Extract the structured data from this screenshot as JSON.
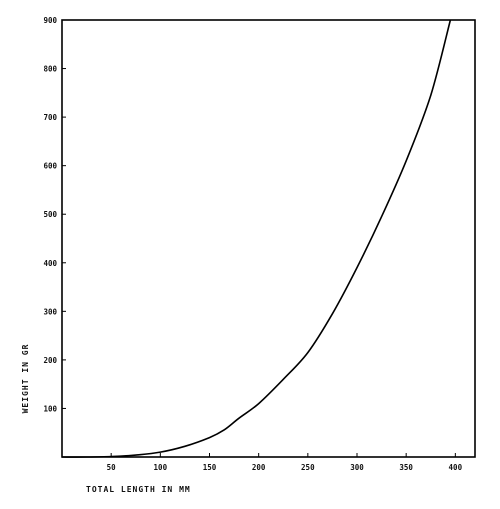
{
  "chart_data": {
    "type": "line",
    "title": "",
    "xlabel": "TOTAL LENGTH IN MM",
    "ylabel": "WEIGHT IN GR",
    "xlim": [
      0,
      420
    ],
    "ylim": [
      0,
      900
    ],
    "x_ticks": [
      50,
      100,
      150,
      200,
      250,
      300,
      350,
      400
    ],
    "y_ticks": [
      100,
      200,
      300,
      400,
      500,
      600,
      700,
      800,
      900
    ],
    "grid": false,
    "legend": "none",
    "line_color": "#000000",
    "series": [
      {
        "x": [
          0,
          25,
          50,
          75,
          100,
          125,
          150,
          165,
          180,
          200,
          225,
          250,
          275,
          300,
          325,
          350,
          375,
          395
        ],
        "y": [
          0,
          0,
          1,
          4,
          10,
          22,
          40,
          56,
          80,
          110,
          160,
          215,
          295,
          390,
          495,
          610,
          745,
          900
        ]
      }
    ]
  }
}
